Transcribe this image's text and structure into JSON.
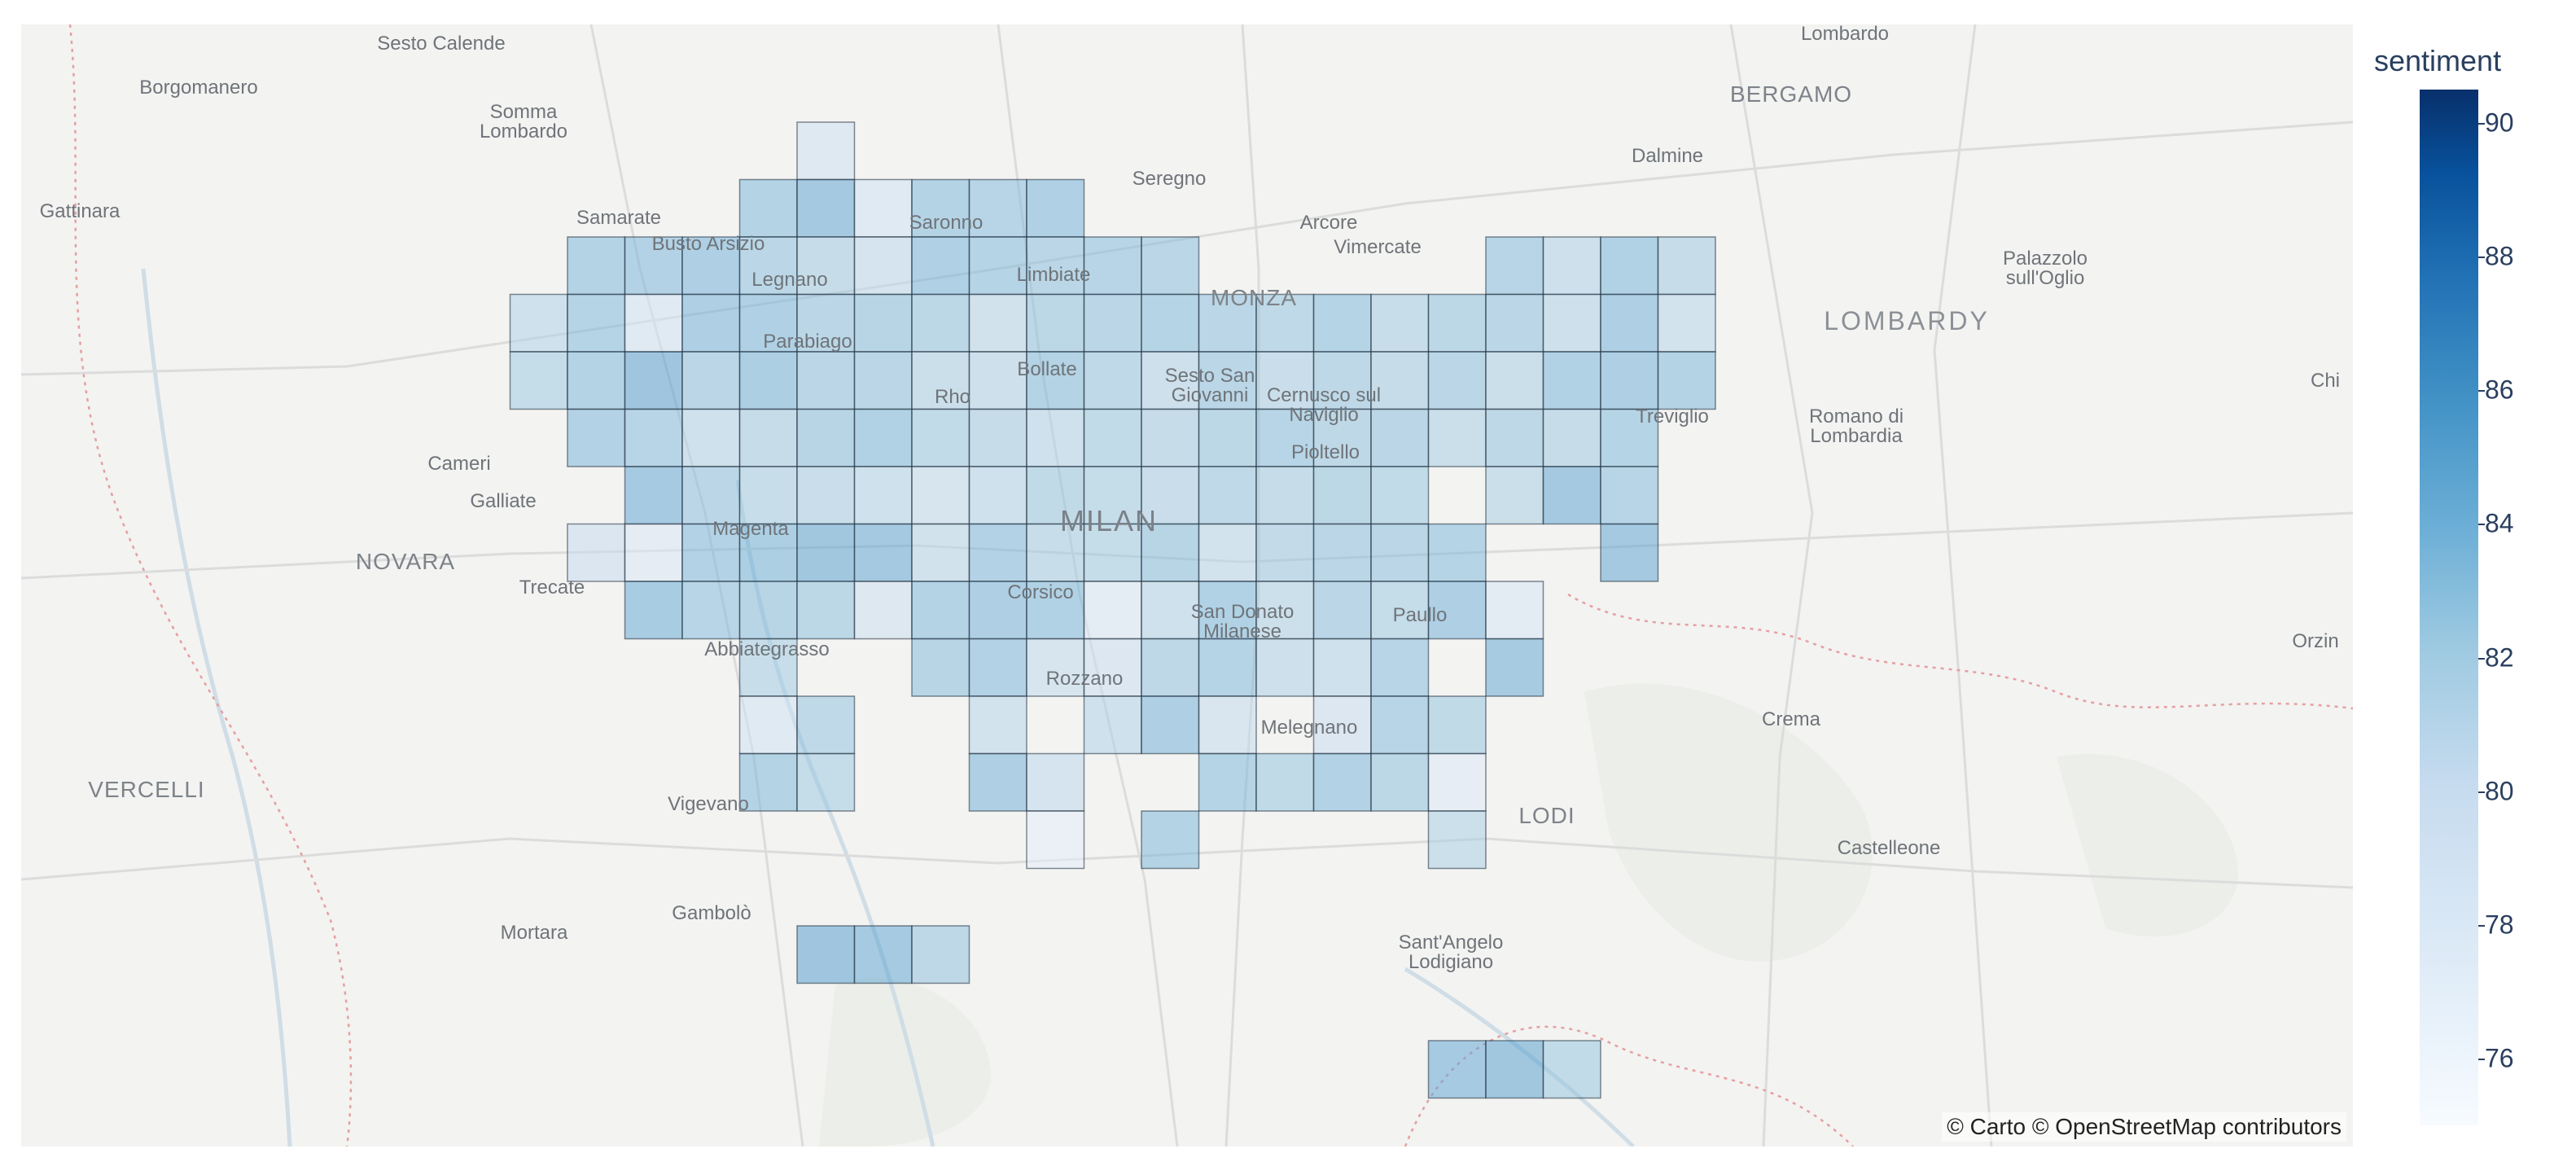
{
  "map": {
    "attribution": "© Carto © OpenStreetMap contributors",
    "places": [
      {
        "name": "Sesto Calende",
        "kind": "town"
      },
      {
        "name": "Borgomanero",
        "kind": "town"
      },
      {
        "name": "Somma\nLombardo",
        "kind": "town"
      },
      {
        "name": "Lombardo",
        "kind": "town"
      },
      {
        "name": "BERGAMO",
        "kind": "city"
      },
      {
        "name": "Dalmine",
        "kind": "town"
      },
      {
        "name": "Gattinara",
        "kind": "town"
      },
      {
        "name": "Samarate",
        "kind": "town"
      },
      {
        "name": "Busto Arsizio",
        "kind": "town"
      },
      {
        "name": "Saronno",
        "kind": "town"
      },
      {
        "name": "Seregno",
        "kind": "town"
      },
      {
        "name": "Arcore",
        "kind": "town"
      },
      {
        "name": "Vimercate",
        "kind": "town"
      },
      {
        "name": "Legnano",
        "kind": "town"
      },
      {
        "name": "Limbiate",
        "kind": "town"
      },
      {
        "name": "MONZA",
        "kind": "town-caps"
      },
      {
        "name": "Palazzolo\nsull'Oglio",
        "kind": "town"
      },
      {
        "name": "LOMBARDY",
        "kind": "region"
      },
      {
        "name": "Parabiago",
        "kind": "town"
      },
      {
        "name": "Bollate",
        "kind": "town"
      },
      {
        "name": "Sesto San\nGiovanni",
        "kind": "town"
      },
      {
        "name": "Cernusco sul\nNaviglio",
        "kind": "town"
      },
      {
        "name": "Rho",
        "kind": "town"
      },
      {
        "name": "Treviglio",
        "kind": "town"
      },
      {
        "name": "Romano di\nLombardia",
        "kind": "town"
      },
      {
        "name": "Chi",
        "kind": "town"
      },
      {
        "name": "Cameri",
        "kind": "town"
      },
      {
        "name": "Pioltello",
        "kind": "town"
      },
      {
        "name": "Galliate",
        "kind": "town"
      },
      {
        "name": "Magenta",
        "kind": "town"
      },
      {
        "name": "MILAN",
        "kind": "major"
      },
      {
        "name": "NOVARA",
        "kind": "city"
      },
      {
        "name": "Trecate",
        "kind": "town"
      },
      {
        "name": "Corsico",
        "kind": "town"
      },
      {
        "name": "San Donato\nMilanese",
        "kind": "town"
      },
      {
        "name": "Paullo",
        "kind": "town"
      },
      {
        "name": "Abbiategrasso",
        "kind": "town"
      },
      {
        "name": "Orzin",
        "kind": "town"
      },
      {
        "name": "Rozzano",
        "kind": "town"
      },
      {
        "name": "Crema",
        "kind": "town"
      },
      {
        "name": "Melegnano",
        "kind": "town"
      },
      {
        "name": "VERCELLI",
        "kind": "city"
      },
      {
        "name": "Vigevano",
        "kind": "town"
      },
      {
        "name": "LODI",
        "kind": "city"
      },
      {
        "name": "Castelleone",
        "kind": "town"
      },
      {
        "name": "Gambolò",
        "kind": "town"
      },
      {
        "name": "Mortara",
        "kind": "town"
      },
      {
        "name": "Sant'Angelo\nLodigiano",
        "kind": "town"
      }
    ]
  },
  "colorbar": {
    "title": "sentiment",
    "min": 75,
    "max": 90.5,
    "ticks": [
      "76",
      "78",
      "80",
      "82",
      "84",
      "86",
      "88",
      "90"
    ]
  },
  "colors": {
    "low": "#f7fbff",
    "high": "#08306b",
    "cell_border": "#1f2d3d"
  },
  "grid": {
    "columns": 20,
    "rows": 15,
    "cells": [
      [
        0,
        13,
        79.5
      ],
      [
        1,
        12,
        83.6
      ],
      [
        1,
        13,
        85.0
      ],
      [
        1,
        14,
        79.2
      ],
      [
        1,
        15,
        83.6
      ],
      [
        1,
        16,
        83.4
      ],
      [
        1,
        17,
        83.9
      ],
      [
        2,
        9,
        83.6
      ],
      [
        2,
        10,
        83.7
      ],
      [
        2,
        11,
        84.1
      ],
      [
        2,
        12,
        83.1
      ],
      [
        2,
        13,
        82.3
      ],
      [
        2,
        14,
        80.8
      ],
      [
        2,
        15,
        83.9
      ],
      [
        2,
        16,
        83.5
      ],
      [
        2,
        17,
        83.2
      ],
      [
        2,
        18,
        83.4
      ],
      [
        2,
        19,
        83.2
      ],
      [
        2,
        25,
        83.4
      ],
      [
        2,
        26,
        81.6
      ],
      [
        2,
        27,
        83.8
      ],
      [
        2,
        28,
        82.3
      ],
      [
        3,
        8,
        81.4
      ],
      [
        3,
        9,
        83.5
      ],
      [
        3,
        10,
        79.2
      ],
      [
        3,
        11,
        84.1
      ],
      [
        3,
        12,
        83.9
      ],
      [
        3,
        13,
        83.1
      ],
      [
        3,
        14,
        83.3
      ],
      [
        3,
        15,
        83.0
      ],
      [
        3,
        16,
        81.2
      ],
      [
        3,
        17,
        83.0
      ],
      [
        3,
        18,
        83.2
      ],
      [
        3,
        19,
        83.5
      ],
      [
        3,
        20,
        83.1
      ],
      [
        3,
        21,
        82.8
      ],
      [
        3,
        22,
        83.5
      ],
      [
        3,
        23,
        82.2
      ],
      [
        3,
        24,
        83.0
      ],
      [
        3,
        25,
        83.1
      ],
      [
        3,
        26,
        81.6
      ],
      [
        3,
        27,
        84.1
      ],
      [
        3,
        28,
        81.0
      ],
      [
        4,
        8,
        82.4
      ],
      [
        4,
        9,
        83.6
      ],
      [
        4,
        10,
        85.3
      ],
      [
        4,
        11,
        83.1
      ],
      [
        4,
        12,
        84.2
      ],
      [
        4,
        13,
        83.1
      ],
      [
        4,
        14,
        83.2
      ],
      [
        4,
        15,
        81.9
      ],
      [
        4,
        16,
        81.7
      ],
      [
        4,
        17,
        83.6
      ],
      [
        4,
        18,
        82.8
      ],
      [
        4,
        19,
        81.7
      ],
      [
        4,
        20,
        83.2
      ],
      [
        4,
        21,
        82.1
      ],
      [
        4,
        22,
        82.9
      ],
      [
        4,
        23,
        82.3
      ],
      [
        4,
        24,
        83.1
      ],
      [
        4,
        25,
        81.9
      ],
      [
        4,
        26,
        83.8
      ],
      [
        4,
        27,
        84.0
      ],
      [
        4,
        28,
        83.6
      ],
      [
        5,
        9,
        83.7
      ],
      [
        5,
        10,
        83.4
      ],
      [
        5,
        11,
        81.4
      ],
      [
        5,
        12,
        82.3
      ],
      [
        5,
        13,
        83.3
      ],
      [
        5,
        14,
        83.8
      ],
      [
        5,
        15,
        82.6
      ],
      [
        5,
        16,
        82.3
      ],
      [
        5,
        17,
        81.4
      ],
      [
        5,
        18,
        82.6
      ],
      [
        5,
        19,
        82.3
      ],
      [
        5,
        20,
        83.0
      ],
      [
        5,
        21,
        83.4
      ],
      [
        5,
        22,
        82.9
      ],
      [
        5,
        23,
        83.1
      ],
      [
        5,
        24,
        82.0
      ],
      [
        5,
        25,
        82.9
      ],
      [
        5,
        26,
        82.3
      ],
      [
        5,
        27,
        83.5
      ],
      [
        6,
        10,
        84.8
      ],
      [
        6,
        11,
        83.1
      ],
      [
        6,
        12,
        82.2
      ],
      [
        6,
        13,
        82.1
      ],
      [
        6,
        14,
        81.4
      ],
      [
        6,
        15,
        80.6
      ],
      [
        6,
        16,
        81.5
      ],
      [
        6,
        17,
        82.7
      ],
      [
        6,
        18,
        82.4
      ],
      [
        6,
        19,
        82.1
      ],
      [
        6,
        20,
        82.8
      ],
      [
        6,
        21,
        82.3
      ],
      [
        6,
        22,
        83.0
      ],
      [
        6,
        23,
        82.6
      ],
      [
        6,
        25,
        82.0
      ],
      [
        6,
        26,
        85.0
      ],
      [
        6,
        27,
        83.4
      ],
      [
        7,
        9,
        80.2
      ],
      [
        7,
        10,
        78.3
      ],
      [
        7,
        11,
        83.7
      ],
      [
        7,
        12,
        84.2
      ],
      [
        7,
        13,
        85.2
      ],
      [
        7,
        14,
        85.0
      ],
      [
        7,
        15,
        81.2
      ],
      [
        7,
        16,
        83.7
      ],
      [
        7,
        17,
        82.2
      ],
      [
        7,
        18,
        82.4
      ],
      [
        7,
        19,
        83.3
      ],
      [
        7,
        20,
        81.0
      ],
      [
        7,
        21,
        82.5
      ],
      [
        7,
        22,
        83.1
      ],
      [
        7,
        23,
        83.2
      ],
      [
        7,
        24,
        83.5
      ],
      [
        7,
        27,
        85.0
      ],
      [
        8,
        10,
        84.6
      ],
      [
        8,
        11,
        83.4
      ],
      [
        8,
        12,
        83.3
      ],
      [
        8,
        13,
        83.0
      ],
      [
        8,
        14,
        79.8
      ],
      [
        8,
        15,
        83.6
      ],
      [
        8,
        16,
        84.0
      ],
      [
        8,
        17,
        83.8
      ],
      [
        8,
        18,
        78.2
      ],
      [
        8,
        19,
        81.5
      ],
      [
        8,
        20,
        83.8
      ],
      [
        8,
        21,
        81.8
      ],
      [
        8,
        22,
        83.2
      ],
      [
        8,
        23,
        82.4
      ],
      [
        8,
        24,
        84.1
      ],
      [
        8,
        25,
        78.6
      ],
      [
        9,
        12,
        82.2
      ],
      [
        9,
        15,
        83.3
      ],
      [
        9,
        16,
        83.7
      ],
      [
        9,
        17,
        80.6
      ],
      [
        9,
        18,
        80.1
      ],
      [
        9,
        19,
        82.9
      ],
      [
        9,
        20,
        83.5
      ],
      [
        9,
        21,
        81.6
      ],
      [
        9,
        22,
        81.4
      ],
      [
        9,
        23,
        83.4
      ],
      [
        9,
        25,
        84.7
      ],
      [
        10,
        12,
        79.2
      ],
      [
        10,
        13,
        82.8
      ],
      [
        10,
        16,
        81.0
      ],
      [
        10,
        18,
        81.5
      ],
      [
        10,
        19,
        84.0
      ],
      [
        10,
        20,
        80.4
      ],
      [
        10,
        22,
        80.0
      ],
      [
        10,
        23,
        83.4
      ],
      [
        10,
        24,
        82.7
      ],
      [
        11,
        12,
        83.6
      ],
      [
        11,
        13,
        82.4
      ],
      [
        11,
        16,
        84.0
      ],
      [
        11,
        17,
        80.8
      ],
      [
        11,
        20,
        83.5
      ],
      [
        11,
        21,
        82.7
      ],
      [
        11,
        22,
        83.7
      ],
      [
        11,
        23,
        83.0
      ],
      [
        11,
        24,
        78.0
      ],
      [
        12,
        17,
        77.0
      ],
      [
        12,
        19,
        83.6
      ],
      [
        12,
        24,
        81.8
      ],
      [
        14,
        13,
        85.3
      ],
      [
        14,
        14,
        84.8
      ],
      [
        14,
        15,
        82.9
      ],
      [
        16,
        24,
        84.8
      ],
      [
        16,
        25,
        85.2
      ],
      [
        16,
        26,
        82.6
      ]
    ]
  }
}
